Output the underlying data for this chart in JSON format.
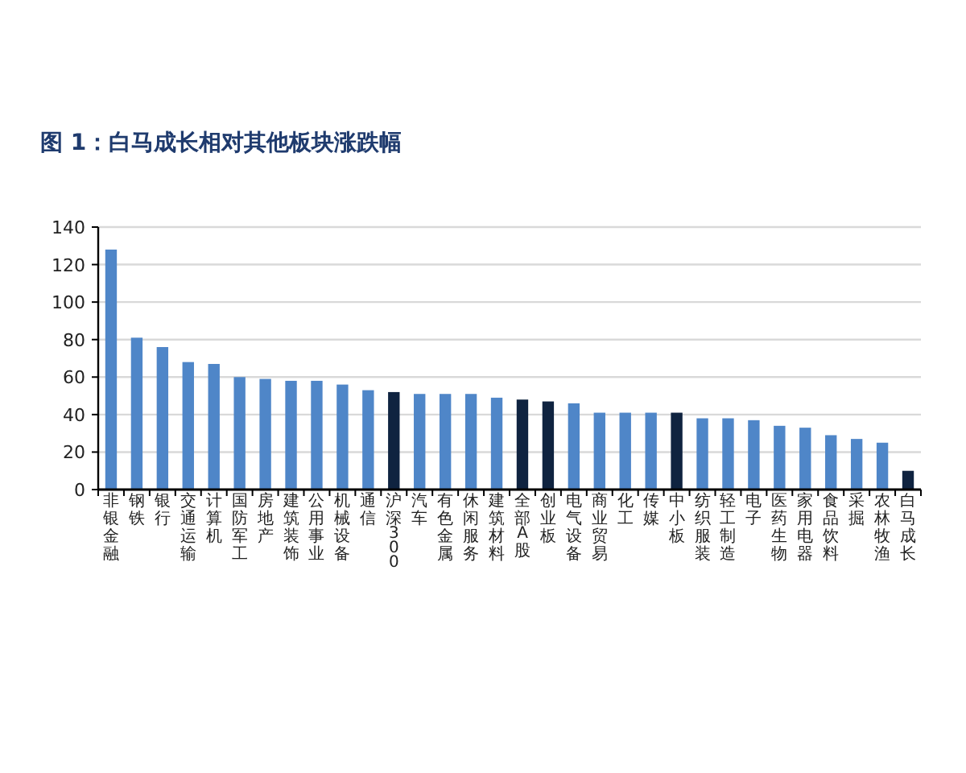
{
  "chart_data": {
    "type": "bar",
    "title": "图 1：白马成长相对其他板块涨跌幅",
    "categories": [
      "非银金融",
      "钢铁",
      "银行",
      "交通运输",
      "计算机",
      "国防军工",
      "房地产",
      "建筑装饰",
      "公用事业",
      "机械设备",
      "通信",
      "沪深300",
      "汽车",
      "有色金属",
      "休闲服务",
      "建筑材料",
      "全部A股",
      "创业板",
      "电气设备",
      "商业贸易",
      "化工",
      "传媒",
      "中小板",
      "纺织服装",
      "轻工制造",
      "电子",
      "医药生物",
      "家用电器",
      "食品饮料",
      "采掘",
      "农林牧渔",
      "白马成长"
    ],
    "values": [
      128,
      81,
      76,
      68,
      67,
      60,
      59,
      58,
      58,
      56,
      53,
      52,
      51,
      51,
      51,
      49,
      48,
      47,
      46,
      41,
      41,
      41,
      41,
      38,
      38,
      37,
      34,
      33,
      29,
      27,
      25,
      10
    ],
    "colors": [
      "#4f86c8",
      "#4f86c8",
      "#4f86c8",
      "#4f86c8",
      "#4f86c8",
      "#4f86c8",
      "#4f86c8",
      "#4f86c8",
      "#4f86c8",
      "#4f86c8",
      "#4f86c8",
      "#0f2340",
      "#4f86c8",
      "#4f86c8",
      "#4f86c8",
      "#4f86c8",
      "#0f2340",
      "#0f2340",
      "#4f86c8",
      "#4f86c8",
      "#4f86c8",
      "#4f86c8",
      "#0f2340",
      "#4f86c8",
      "#4f86c8",
      "#4f86c8",
      "#4f86c8",
      "#4f86c8",
      "#4f86c8",
      "#4f86c8",
      "#4f86c8",
      "#0f2340"
    ],
    "ylim": [
      0,
      140
    ],
    "yticks": [
      0,
      20,
      40,
      60,
      80,
      100,
      120,
      140
    ],
    "grid": "y"
  }
}
